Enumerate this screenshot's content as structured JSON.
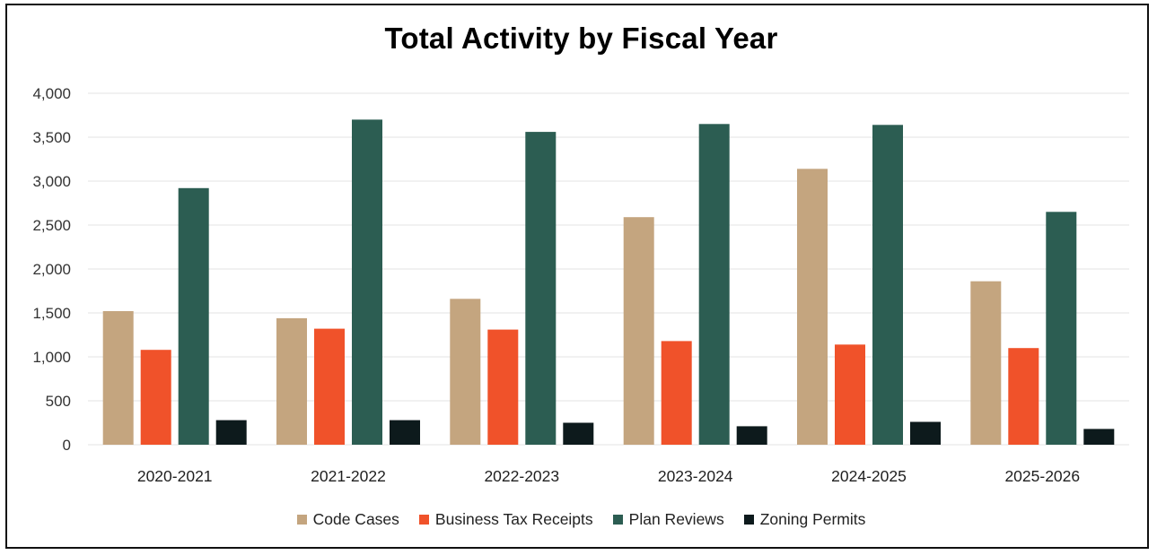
{
  "chart_data": {
    "type": "bar",
    "title": "Total Activity by Fiscal Year",
    "xlabel": "",
    "ylabel": "",
    "ylim": [
      0,
      4000
    ],
    "yticks": [
      0,
      500,
      1000,
      1500,
      2000,
      2500,
      3000,
      3500,
      4000
    ],
    "ytick_labels": [
      "0",
      "500",
      "1,000",
      "1,500",
      "2,000",
      "2,500",
      "3,000",
      "3,500",
      "4,000"
    ],
    "grid": true,
    "legend_position": "bottom",
    "categories": [
      "2020-2021",
      "2021-2022",
      "2022-2023",
      "2023-2024",
      "2024-2025",
      "2025-2026"
    ],
    "series": [
      {
        "name": "Code Cases",
        "color": "#C4A57F",
        "values": [
          1520,
          1440,
          1660,
          2590,
          3140,
          1860
        ]
      },
      {
        "name": "Business Tax Receipts",
        "color": "#F0522A",
        "values": [
          1080,
          1320,
          1310,
          1180,
          1140,
          1100
        ]
      },
      {
        "name": "Plan Reviews",
        "color": "#2C5D52",
        "values": [
          2920,
          3700,
          3560,
          3650,
          3640,
          2650
        ]
      },
      {
        "name": "Zoning Permits",
        "color": "#0D1A1C",
        "values": [
          280,
          280,
          250,
          210,
          260,
          180
        ]
      }
    ]
  }
}
